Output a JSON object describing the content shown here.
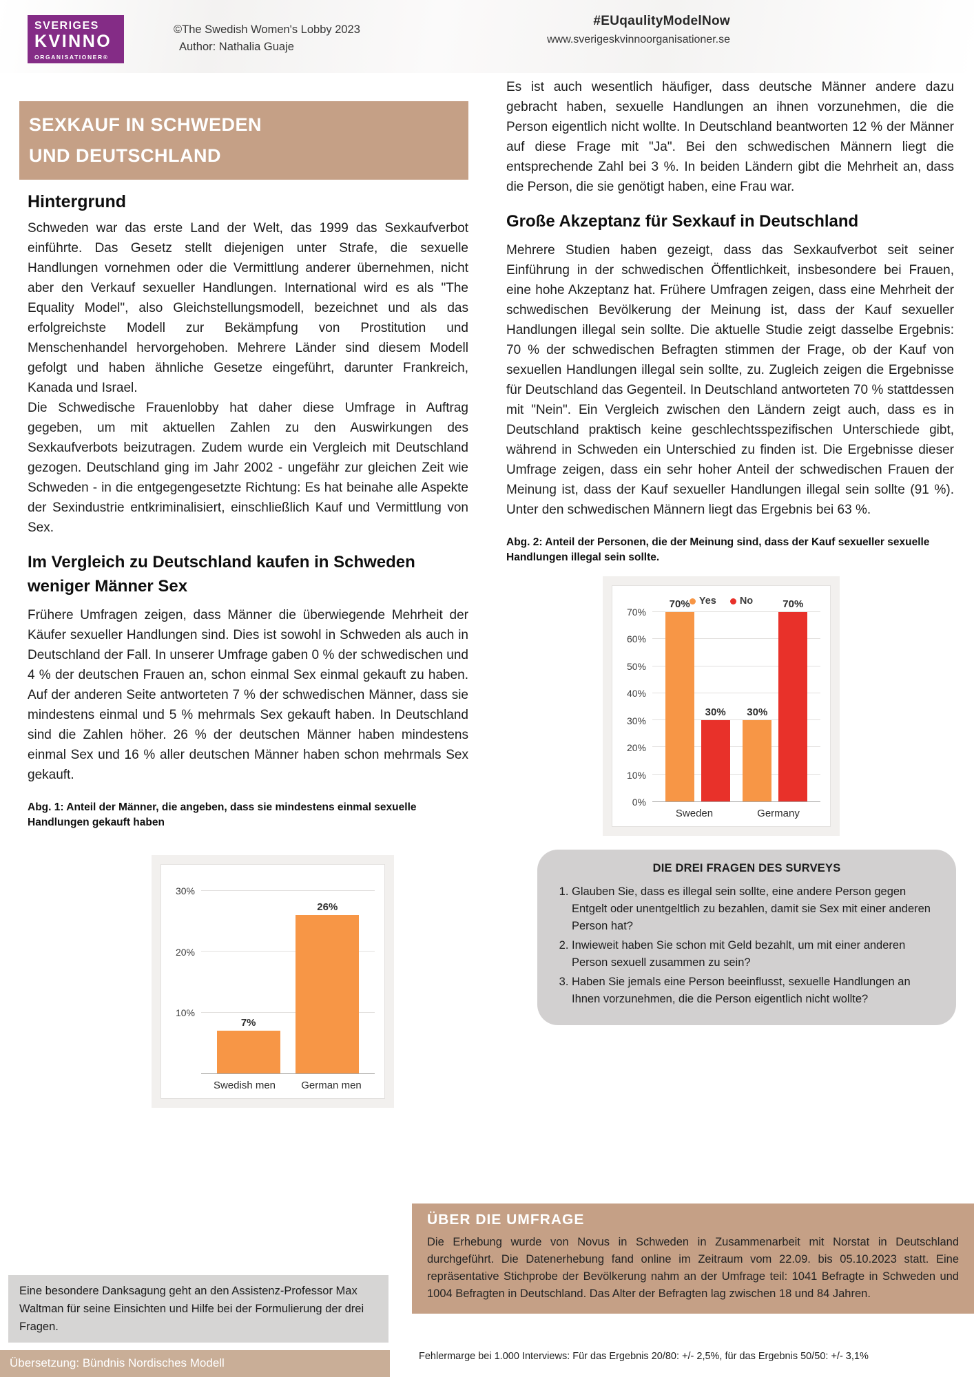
{
  "header": {
    "logo": {
      "line1": "SVERIGES",
      "line2": "KVINNO",
      "line3": "ORGANISATIONER®"
    },
    "credit": {
      "line1": "©The Swedish Women's Lobby 2023",
      "line2": "Author: Nathalia Guaje"
    },
    "hashtag": "#EUqaulityModelNow",
    "website": "www.sverigeskvinnoorganisationer.se"
  },
  "banner": {
    "line1": "SEXKAUF IN SCHWEDEN",
    "line2": "UND DEUTSCHLAND"
  },
  "left_column": {
    "heading1": "Hintergrund",
    "para1": "Schweden war das erste Land der Welt, das 1999 das Sexkaufverbot einführte. Das Gesetz stellt diejenigen unter Strafe, die sexuelle Handlungen vornehmen oder die Vermittlung anderer übernehmen, nicht aber den Verkauf sexueller Handlungen. International wird es als \"The Equality Model\", also Gleichstellungsmodell, bezeichnet und als das erfolgreichste Modell zur Bekämpfung von Prostitution und Menschenhandel hervorgehoben. Mehrere Länder sind diesem Modell gefolgt und haben ähnliche Gesetze eingeführt, darunter Frankreich, Kanada und Israel.",
    "para2": "Die Schwedische Frauenlobby hat daher diese Umfrage in Auftrag gegeben, um mit aktuellen Zahlen zu den Auswirkungen des Sexkaufverbots beizutragen. Zudem wurde ein Vergleich mit Deutschland gezogen. Deutschland ging im Jahr 2002 - ungefähr zur gleichen Zeit wie Schweden - in die entgegengesetzte Richtung: Es hat beinahe alle Aspekte der Sexindustrie entkriminalisiert, einschließlich Kauf und Vermittlung von Sex.",
    "heading2": "Im Vergleich zu Deutschland kaufen in Schweden weniger Männer Sex",
    "para3": "Frühere Umfragen zeigen, dass Männer die überwiegende Mehrheit der Käufer sexueller Handlungen sind. Dies ist sowohl in Schweden als auch in Deutschland der Fall. In unserer Umfrage gaben 0 % der schwedischen und 4 % der deutschen Frauen an, schon einmal Sex einmal gekauft zu haben. Auf der anderen Seite antworteten 7 % der schwedischen Männer, dass sie mindestens einmal und 5 % mehrmals Sex gekauft haben. In Deutschland sind die Zahlen höher. 26 % der deutschen Männer haben mindestens einmal Sex und 16 % aller deutschen Männer haben schon mehrmals Sex gekauft.",
    "fig1_caption": "Abg. 1: Anteil der Männer, die angeben, dass sie mindestens einmal sexuelle Handlungen gekauft haben"
  },
  "right_column": {
    "para1": "Es ist auch wesentlich häufiger, dass deutsche Männer andere dazu gebracht haben, sexuelle Handlungen an ihnen vorzunehmen, die die Person eigentlich nicht wollte. In Deutschland beantworten 12 % der Männer auf diese Frage mit \"Ja\". Bei den schwedischen Männern liegt die entsprechende Zahl bei 3 %. In beiden Ländern gibt die Mehrheit an, dass die Person, die sie genötigt haben, eine Frau war.",
    "heading1": "Große Akzeptanz für Sexkauf in Deutschland",
    "para2": "Mehrere Studien haben gezeigt, dass das Sexkaufverbot seit seiner Einführung in der schwedischen Öffentlichkeit, insbesondere bei Frauen, eine hohe Akzeptanz hat. Frühere Umfragen zeigen, dass eine Mehrheit der schwedischen Bevölkerung der Meinung ist, dass der Kauf sexueller Handlungen illegal sein sollte. Die aktuelle Studie zeigt dasselbe Ergebnis: 70 % der schwedischen Befragten stimmen der Frage, ob der Kauf von sexuellen Handlungen illegal sein sollte, zu. Zugleich zeigen die Ergebnisse für Deutschland das Gegenteil. In Deutschland antworteten 70 % stattdessen mit \"Nein\". Ein Vergleich zwischen den Ländern zeigt auch, dass es in Deutschland praktisch keine geschlechtsspezifischen Unterschiede gibt, während in Schweden ein Unterschied zu finden ist. Die Ergebnisse dieser Umfrage zeigen, dass ein sehr hoher Anteil der schwedischen Frauen der Meinung ist, dass der Kauf sexueller Handlungen illegal sein sollte (91 %). Unter den schwedischen Männern liegt das Ergebnis bei 63 %.",
    "fig2_caption": "Abg. 2: Anteil der Personen, die der Meinung sind, dass der Kauf sexueller sexuelle Handlungen illegal sein sollte."
  },
  "survey_box": {
    "title": "DIE DREI FRAGEN DES SURVEYS",
    "questions": [
      "Glauben Sie, dass es illegal sein sollte, eine andere Person gegen Entgelt oder unentgeltlich zu bezahlen, damit sie Sex mit einer anderen Person hat?",
      "Inwieweit haben Sie schon mit Geld bezahlt, um mit einer anderen Person sexuell zusammen zu sein?",
      "Haben Sie jemals eine Person beeinflusst, sexuelle Handlungen an Ihnen vorzunehmen, die die Person eigentlich nicht wollte?"
    ]
  },
  "about_box": {
    "title": "ÜBER DIE UMFRAGE",
    "body": "Die Erhebung wurde von Novus in Schweden in Zusammenarbeit mit Norstat in Deutschland durchgeführt. Die Datenerhebung fand online im Zeitraum vom 22.09. bis 05.10.2023 statt. Eine repräsentative Stichprobe der Bevölkerung nahm an der Umfrage teil: 1041 Befragte in Schweden und 1004 Befragten in Deutschland. Das Alter der Befragten lag zwischen 18 und 84 Jahren."
  },
  "acknowledgement": "Eine besondere Danksagung geht an den Assistenz-Professor Max Waltman für seine Einsichten und Hilfe bei der Formulierung der drei Fragen.",
  "translation_bar": "Übersetzung: Bündnis Nordisches Modell",
  "error_margin": "Fehlermarge bei 1.000 Interviews: Für das Ergebnis 20/80: +/- 2,5%, für das Ergebnis 50/50: +/- 3,1%",
  "colors": {
    "accent_tan": "#c5a086",
    "logo_purple": "#842c86",
    "bar_orange": "#f79646",
    "bar_red": "#e8312a"
  },
  "chart_data": [
    {
      "type": "bar",
      "categories": [
        "Swedish men",
        "German men"
      ],
      "values": [
        7,
        26
      ],
      "labels": [
        "7%",
        "26%"
      ],
      "bar_color": "#f79646",
      "ylim": [
        0,
        30
      ],
      "yticks": [
        "10%",
        "20%",
        "30%"
      ],
      "grid": true,
      "legend_position": "none"
    },
    {
      "type": "bar",
      "categories": [
        "Sweden",
        "Germany"
      ],
      "series": [
        {
          "name": "Yes",
          "color": "#f79646",
          "values": [
            70,
            30
          ]
        },
        {
          "name": "No",
          "color": "#e8312a",
          "values": [
            30,
            70
          ]
        }
      ],
      "ylim": [
        0,
        70
      ],
      "yticks": [
        "0%",
        "10%",
        "20%",
        "30%",
        "40%",
        "50%",
        "60%",
        "70%"
      ],
      "grid": true,
      "legend": [
        "Yes",
        "No"
      ],
      "legend_position": "top"
    }
  ]
}
